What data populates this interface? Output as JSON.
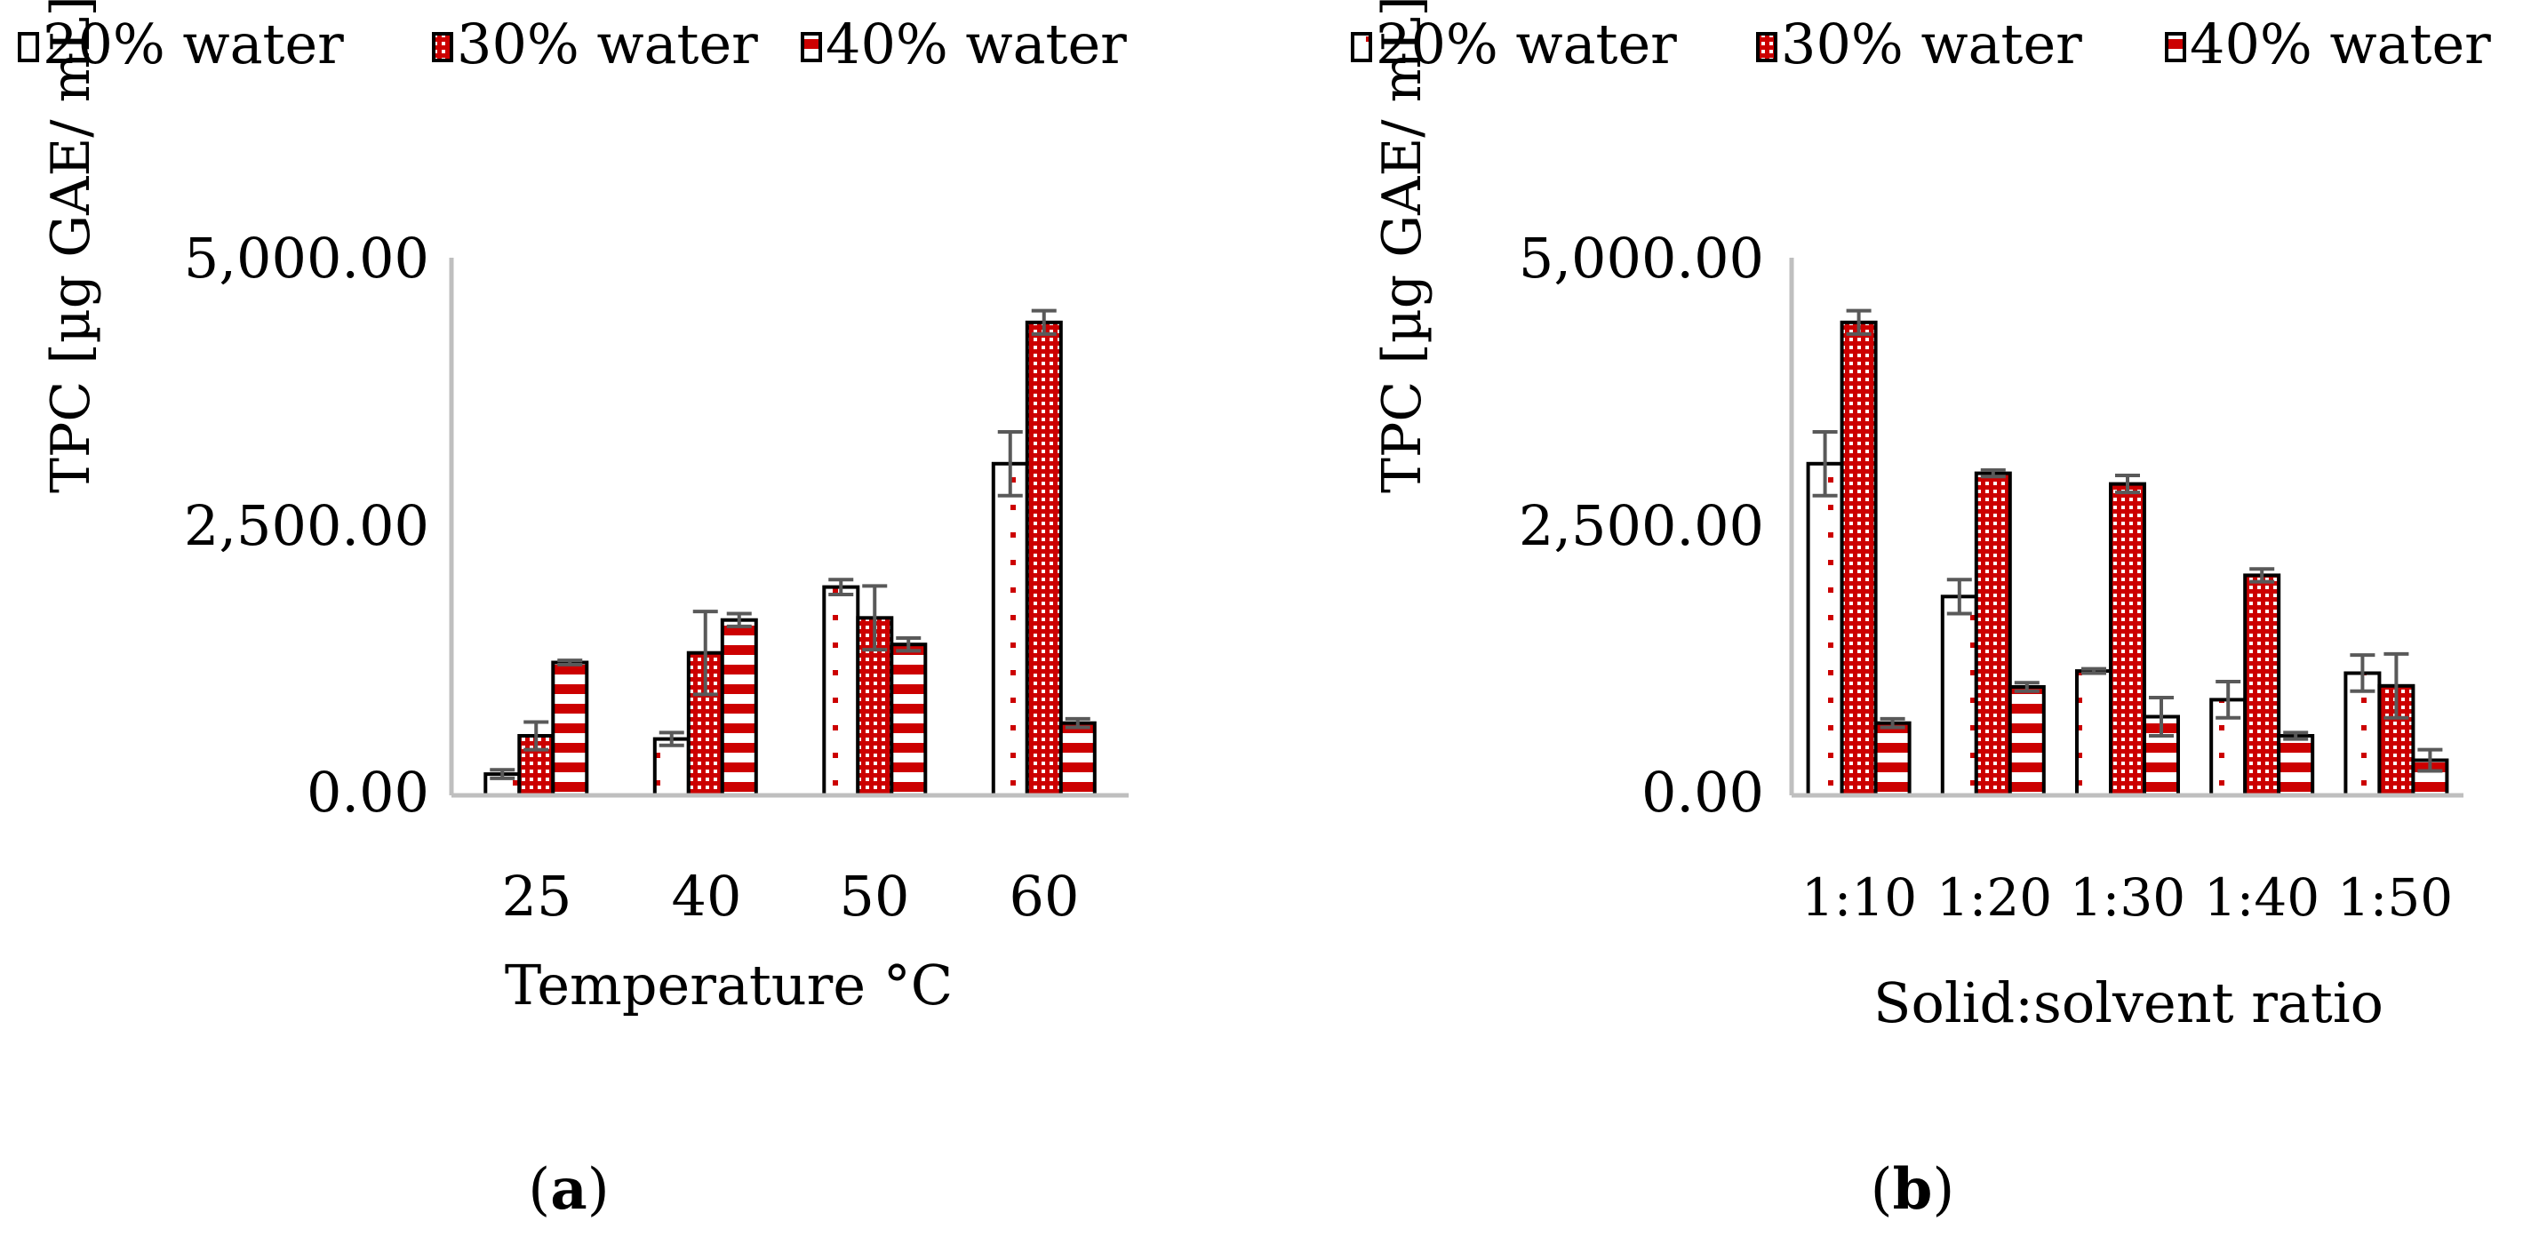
{
  "colors": {
    "red": "#cc0000",
    "outline": "#000000",
    "axis": "#bfbfbf",
    "errorbar": "#595959"
  },
  "chart_data": [
    {
      "type": "bar",
      "panel_label": "a",
      "legend": [
        "20% water",
        "30% water",
        "40% water"
      ],
      "ylabel": "TPC [µg  GAE/ mL]",
      "xlabel": "Temperature °C",
      "ylim": [
        0,
        5000
      ],
      "yticks": [
        "0.00",
        "2,500.00",
        "5,000.00"
      ],
      "categories": [
        "25",
        "40",
        "50",
        "60"
      ],
      "series": [
        {
          "name": "20% water",
          "values": [
            200,
            530,
            1960,
            3120
          ],
          "errors": [
            40,
            60,
            70,
            300
          ]
        },
        {
          "name": "30% water",
          "values": [
            560,
            1340,
            1670,
            4450
          ],
          "errors": [
            130,
            390,
            300,
            110
          ]
        },
        {
          "name": "40% water",
          "values": [
            1250,
            1650,
            1420,
            680
          ],
          "errors": [
            20,
            60,
            60,
            40
          ]
        }
      ]
    },
    {
      "type": "bar",
      "panel_label": "b",
      "legend": [
        "20% water",
        "30% water",
        "40% water"
      ],
      "ylabel": "TPC [µg  GAE/ mL]",
      "xlabel": "Solid:solvent ratio",
      "ylim": [
        0,
        5000
      ],
      "yticks": [
        "0.00",
        "2,500.00",
        "5,000.00"
      ],
      "categories": [
        "1:10",
        "1:20",
        "1:30",
        "1:40",
        "1:50"
      ],
      "series": [
        {
          "name": "20% water",
          "values": [
            3120,
            1870,
            1170,
            900,
            1150
          ],
          "errors": [
            300,
            160,
            20,
            170,
            170
          ]
        },
        {
          "name": "30% water",
          "values": [
            4450,
            3030,
            2930,
            2070,
            1030
          ],
          "errors": [
            110,
            30,
            80,
            60,
            300
          ]
        },
        {
          "name": "40% water",
          "values": [
            680,
            1020,
            740,
            560,
            330
          ],
          "errors": [
            40,
            40,
            180,
            30,
            100
          ]
        }
      ]
    }
  ]
}
